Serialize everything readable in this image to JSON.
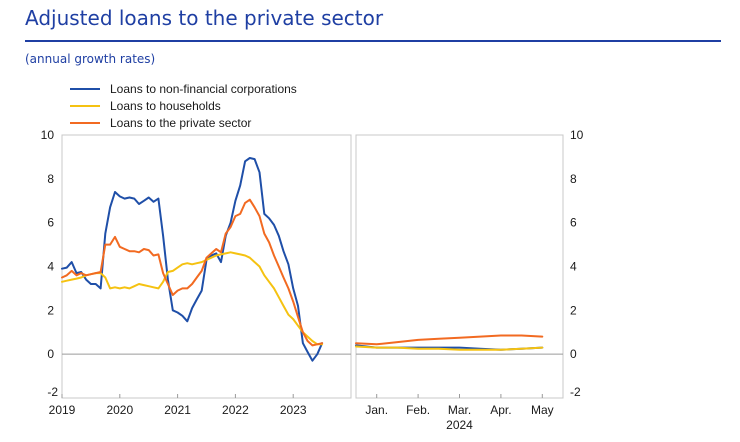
{
  "header": {
    "title": "Adjusted loans to the private sector",
    "subtitle": "(annual growth rates)"
  },
  "colors": {
    "accent": "#1f3fa3",
    "nfc": "#1f4fa8",
    "households": "#f5c211",
    "private_sector": "#f26a21"
  },
  "chart_data": {
    "type": "line",
    "title": "Adjusted loans to the private sector",
    "subtitle": "(annual growth rates)",
    "ylim": [
      -2,
      10
    ],
    "yticks": [
      -2,
      0,
      2,
      4,
      6,
      8,
      10
    ],
    "ytick_labels": [
      "-2",
      "0",
      "2",
      "4",
      "6",
      "8",
      "10"
    ],
    "legend_position": "top-left",
    "panels": [
      {
        "name": "history",
        "x_range": [
          2019.0,
          2024.0
        ],
        "ticks": [
          {
            "x": 2019.0,
            "label": "2019"
          },
          {
            "x": 2020.0,
            "label": "2020"
          },
          {
            "x": 2021.0,
            "label": "2021"
          },
          {
            "x": 2022.0,
            "label": "2022"
          },
          {
            "x": 2023.0,
            "label": "2023"
          }
        ]
      },
      {
        "name": "2024-detail",
        "x_range": [
          0.0,
          5.0
        ],
        "year_label": "2024",
        "ticks": [
          {
            "x": 0.5,
            "label": "Jan."
          },
          {
            "x": 1.5,
            "label": "Feb."
          },
          {
            "x": 2.5,
            "label": "Mar."
          },
          {
            "x": 3.5,
            "label": "Apr."
          },
          {
            "x": 4.5,
            "label": "May"
          }
        ]
      }
    ],
    "series": [
      {
        "name": "Loans to non-financial corporations",
        "color": "#1f4fa8",
        "history": [
          [
            2019.0,
            3.9
          ],
          [
            2019.083,
            3.95
          ],
          [
            2019.167,
            4.2
          ],
          [
            2019.25,
            3.7
          ],
          [
            2019.333,
            3.75
          ],
          [
            2019.417,
            3.4
          ],
          [
            2019.5,
            3.2
          ],
          [
            2019.583,
            3.2
          ],
          [
            2019.667,
            3.0
          ],
          [
            2019.75,
            5.5
          ],
          [
            2019.833,
            6.7
          ],
          [
            2019.917,
            7.4
          ],
          [
            2020.0,
            7.2
          ],
          [
            2020.083,
            7.1
          ],
          [
            2020.167,
            7.15
          ],
          [
            2020.25,
            7.1
          ],
          [
            2020.333,
            6.85
          ],
          [
            2020.417,
            7.0
          ],
          [
            2020.5,
            7.15
          ],
          [
            2020.583,
            6.95
          ],
          [
            2020.667,
            7.1
          ],
          [
            2020.75,
            5.4
          ],
          [
            2020.833,
            3.4
          ],
          [
            2020.917,
            2.0
          ],
          [
            2021.0,
            1.9
          ],
          [
            2021.083,
            1.75
          ],
          [
            2021.167,
            1.5
          ],
          [
            2021.25,
            2.1
          ],
          [
            2021.333,
            2.5
          ],
          [
            2021.417,
            2.9
          ],
          [
            2021.5,
            4.3
          ],
          [
            2021.583,
            4.5
          ],
          [
            2021.667,
            4.6
          ],
          [
            2021.75,
            4.2
          ],
          [
            2021.833,
            5.4
          ],
          [
            2021.917,
            6.0
          ],
          [
            2022.0,
            7.0
          ],
          [
            2022.083,
            7.7
          ],
          [
            2022.167,
            8.8
          ],
          [
            2022.25,
            8.95
          ],
          [
            2022.333,
            8.9
          ],
          [
            2022.417,
            8.3
          ],
          [
            2022.5,
            6.4
          ],
          [
            2022.583,
            6.2
          ],
          [
            2022.667,
            5.9
          ],
          [
            2022.75,
            5.4
          ],
          [
            2022.833,
            4.7
          ],
          [
            2022.917,
            4.1
          ],
          [
            2023.0,
            3.0
          ],
          [
            2023.083,
            2.2
          ],
          [
            2023.167,
            0.5
          ],
          [
            2023.25,
            0.1
          ],
          [
            2023.333,
            -0.3
          ],
          [
            2023.417,
            0.0
          ],
          [
            2023.5,
            0.5
          ]
        ],
        "detail": [
          [
            0.0,
            0.4
          ],
          [
            0.5,
            0.3
          ],
          [
            1.0,
            0.3
          ],
          [
            1.5,
            0.3
          ],
          [
            2.0,
            0.3
          ],
          [
            2.5,
            0.3
          ],
          [
            3.0,
            0.25
          ],
          [
            3.5,
            0.2
          ],
          [
            4.0,
            0.25
          ],
          [
            4.5,
            0.3
          ]
        ]
      },
      {
        "name": "Loans to households",
        "color": "#f5c211",
        "history": [
          [
            2019.0,
            3.3
          ],
          [
            2019.083,
            3.35
          ],
          [
            2019.167,
            3.4
          ],
          [
            2019.25,
            3.45
          ],
          [
            2019.333,
            3.5
          ],
          [
            2019.417,
            3.6
          ],
          [
            2019.5,
            3.65
          ],
          [
            2019.583,
            3.7
          ],
          [
            2019.667,
            3.7
          ],
          [
            2019.75,
            3.5
          ],
          [
            2019.833,
            3.0
          ],
          [
            2019.917,
            3.05
          ],
          [
            2020.0,
            3.0
          ],
          [
            2020.083,
            3.05
          ],
          [
            2020.167,
            3.0
          ],
          [
            2020.25,
            3.1
          ],
          [
            2020.333,
            3.2
          ],
          [
            2020.417,
            3.15
          ],
          [
            2020.5,
            3.1
          ],
          [
            2020.583,
            3.05
          ],
          [
            2020.667,
            3.0
          ],
          [
            2020.75,
            3.3
          ],
          [
            2020.833,
            3.75
          ],
          [
            2020.917,
            3.8
          ],
          [
            2021.0,
            3.95
          ],
          [
            2021.083,
            4.1
          ],
          [
            2021.167,
            4.15
          ],
          [
            2021.25,
            4.1
          ],
          [
            2021.333,
            4.15
          ],
          [
            2021.417,
            4.2
          ],
          [
            2021.5,
            4.3
          ],
          [
            2021.583,
            4.4
          ],
          [
            2021.667,
            4.5
          ],
          [
            2021.75,
            4.55
          ],
          [
            2021.833,
            4.6
          ],
          [
            2021.917,
            4.65
          ],
          [
            2022.0,
            4.6
          ],
          [
            2022.083,
            4.55
          ],
          [
            2022.167,
            4.5
          ],
          [
            2022.25,
            4.4
          ],
          [
            2022.333,
            4.2
          ],
          [
            2022.417,
            4.0
          ],
          [
            2022.5,
            3.6
          ],
          [
            2022.583,
            3.3
          ],
          [
            2022.667,
            3.0
          ],
          [
            2022.75,
            2.6
          ],
          [
            2022.833,
            2.2
          ],
          [
            2022.917,
            1.8
          ],
          [
            2023.0,
            1.6
          ],
          [
            2023.083,
            1.3
          ],
          [
            2023.167,
            1.0
          ],
          [
            2023.25,
            0.8
          ],
          [
            2023.333,
            0.6
          ],
          [
            2023.417,
            0.45
          ],
          [
            2023.5,
            0.45
          ]
        ],
        "detail": [
          [
            0.0,
            0.35
          ],
          [
            0.5,
            0.3
          ],
          [
            1.0,
            0.3
          ],
          [
            1.5,
            0.25
          ],
          [
            2.0,
            0.25
          ],
          [
            2.5,
            0.2
          ],
          [
            3.0,
            0.2
          ],
          [
            3.5,
            0.2
          ],
          [
            4.0,
            0.25
          ],
          [
            4.5,
            0.3
          ]
        ]
      },
      {
        "name": "Loans to the private sector",
        "color": "#f26a21",
        "history": [
          [
            2019.0,
            3.5
          ],
          [
            2019.083,
            3.6
          ],
          [
            2019.167,
            3.8
          ],
          [
            2019.25,
            3.6
          ],
          [
            2019.333,
            3.7
          ],
          [
            2019.417,
            3.6
          ],
          [
            2019.5,
            3.65
          ],
          [
            2019.583,
            3.7
          ],
          [
            2019.667,
            3.75
          ],
          [
            2019.75,
            5.0
          ],
          [
            2019.833,
            5.0
          ],
          [
            2019.917,
            5.35
          ],
          [
            2020.0,
            4.9
          ],
          [
            2020.083,
            4.8
          ],
          [
            2020.167,
            4.7
          ],
          [
            2020.25,
            4.7
          ],
          [
            2020.333,
            4.65
          ],
          [
            2020.417,
            4.8
          ],
          [
            2020.5,
            4.75
          ],
          [
            2020.583,
            4.5
          ],
          [
            2020.667,
            4.55
          ],
          [
            2020.75,
            3.7
          ],
          [
            2020.833,
            3.2
          ],
          [
            2020.917,
            2.7
          ],
          [
            2021.0,
            2.9
          ],
          [
            2021.083,
            3.0
          ],
          [
            2021.167,
            3.0
          ],
          [
            2021.25,
            3.2
          ],
          [
            2021.333,
            3.5
          ],
          [
            2021.417,
            3.8
          ],
          [
            2021.5,
            4.4
          ],
          [
            2021.583,
            4.6
          ],
          [
            2021.667,
            4.8
          ],
          [
            2021.75,
            4.65
          ],
          [
            2021.833,
            5.5
          ],
          [
            2021.917,
            5.8
          ],
          [
            2022.0,
            6.3
          ],
          [
            2022.083,
            6.4
          ],
          [
            2022.167,
            6.9
          ],
          [
            2022.25,
            7.05
          ],
          [
            2022.333,
            6.7
          ],
          [
            2022.417,
            6.3
          ],
          [
            2022.5,
            5.5
          ],
          [
            2022.583,
            5.1
          ],
          [
            2022.667,
            4.5
          ],
          [
            2022.75,
            4.0
          ],
          [
            2022.833,
            3.5
          ],
          [
            2022.917,
            3.0
          ],
          [
            2023.0,
            2.4
          ],
          [
            2023.083,
            1.7
          ],
          [
            2023.167,
            1.0
          ],
          [
            2023.25,
            0.6
          ],
          [
            2023.333,
            0.4
          ],
          [
            2023.417,
            0.45
          ],
          [
            2023.5,
            0.5
          ]
        ],
        "detail": [
          [
            0.0,
            0.5
          ],
          [
            0.5,
            0.45
          ],
          [
            1.0,
            0.55
          ],
          [
            1.5,
            0.65
          ],
          [
            2.0,
            0.7
          ],
          [
            2.5,
            0.75
          ],
          [
            3.0,
            0.8
          ],
          [
            3.5,
            0.85
          ],
          [
            4.0,
            0.85
          ],
          [
            4.5,
            0.8
          ]
        ]
      }
    ]
  }
}
